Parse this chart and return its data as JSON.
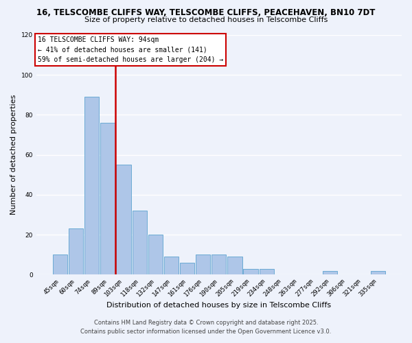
{
  "title_line1": "16, TELSCOMBE CLIFFS WAY, TELSCOMBE CLIFFS, PEACEHAVEN, BN10 7DT",
  "title_line2": "Size of property relative to detached houses in Telscombe Cliffs",
  "xlabel": "Distribution of detached houses by size in Telscombe Cliffs",
  "ylabel": "Number of detached properties",
  "categories": [
    "45sqm",
    "60sqm",
    "74sqm",
    "89sqm",
    "103sqm",
    "118sqm",
    "132sqm",
    "147sqm",
    "161sqm",
    "176sqm",
    "190sqm",
    "205sqm",
    "219sqm",
    "234sqm",
    "248sqm",
    "263sqm",
    "277sqm",
    "292sqm",
    "306sqm",
    "321sqm",
    "335sqm"
  ],
  "values": [
    10,
    23,
    89,
    76,
    55,
    32,
    20,
    9,
    6,
    10,
    10,
    9,
    3,
    3,
    0,
    0,
    0,
    2,
    0,
    0,
    2
  ],
  "bar_color": "#aec6e8",
  "bar_edge_color": "#6aaad4",
  "vline_x": 3.5,
  "vline_color": "#cc0000",
  "ylim": [
    0,
    120
  ],
  "yticks": [
    0,
    20,
    40,
    60,
    80,
    100,
    120
  ],
  "annotation_title": "16 TELSCOMBE CLIFFS WAY: 94sqm",
  "annotation_line2": "← 41% of detached houses are smaller (141)",
  "annotation_line3": "59% of semi-detached houses are larger (204) →",
  "annotation_box_color": "#ffffff",
  "annotation_box_edge": "#cc0000",
  "footnote1": "Contains HM Land Registry data © Crown copyright and database right 2025.",
  "footnote2": "Contains public sector information licensed under the Open Government Licence v3.0.",
  "background_color": "#eef2fb",
  "grid_color": "#ffffff"
}
